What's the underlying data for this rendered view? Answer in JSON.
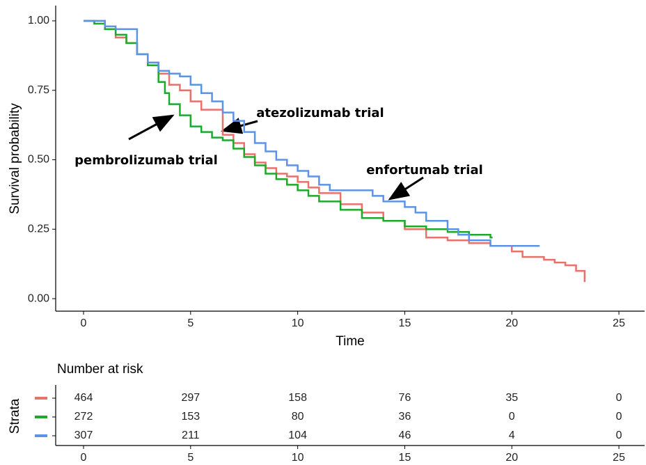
{
  "chart_data": {
    "type": "survival",
    "ylabel": "Survival probability",
    "xlabel": "Time",
    "xlim": [
      -1.3,
      26.2
    ],
    "ylim": [
      -0.045,
      1.055
    ],
    "xticks": [
      0,
      5,
      10,
      15,
      20,
      25
    ],
    "yticks": [
      {
        "value": 0,
        "label": "0.00"
      },
      {
        "value": 0.25,
        "label": "0.25"
      },
      {
        "value": 0.5,
        "label": "0.50"
      },
      {
        "value": 0.75,
        "label": "0.75"
      },
      {
        "value": 1,
        "label": "1.00"
      }
    ],
    "series": [
      {
        "color": "#E8726B",
        "x": [
          0,
          1,
          1.5,
          2,
          2.5,
          3,
          3.5,
          4,
          4.5,
          5,
          5.5,
          6.5,
          7,
          7.5,
          8,
          8.5,
          9,
          9.5,
          10,
          10.5,
          11,
          12,
          13,
          14,
          15,
          16,
          17,
          18,
          19,
          20,
          20.5,
          21.5,
          22,
          22.5,
          23,
          23.4
        ],
        "values": [
          1,
          0.97,
          0.94,
          0.92,
          0.88,
          0.85,
          0.81,
          0.77,
          0.75,
          0.71,
          0.68,
          0.59,
          0.56,
          0.52,
          0.49,
          0.47,
          0.45,
          0.44,
          0.42,
          0.4,
          0.38,
          0.34,
          0.31,
          0.28,
          0.25,
          0.22,
          0.21,
          0.2,
          0.19,
          0.17,
          0.15,
          0.14,
          0.13,
          0.12,
          0.1,
          0.06
        ]
      },
      {
        "color": "#1DAA2C",
        "x": [
          0,
          0.5,
          1,
          1.5,
          2,
          2.5,
          3,
          3.5,
          3.8,
          4,
          4.5,
          5,
          5.5,
          6,
          6.5,
          7,
          7.5,
          8,
          8.5,
          9,
          9.5,
          10,
          10.5,
          11,
          12,
          13,
          14,
          15,
          16,
          17,
          18,
          19,
          19.1
        ],
        "values": [
          1,
          0.99,
          0.97,
          0.95,
          0.92,
          0.88,
          0.84,
          0.78,
          0.74,
          0.7,
          0.66,
          0.62,
          0.6,
          0.58,
          0.57,
          0.54,
          0.51,
          0.48,
          0.45,
          0.43,
          0.41,
          0.39,
          0.37,
          0.35,
          0.32,
          0.29,
          0.28,
          0.26,
          0.25,
          0.24,
          0.23,
          0.22,
          0.22
        ]
      },
      {
        "color": "#5B94E6",
        "x": [
          0,
          1,
          1.5,
          2.5,
          3,
          3.5,
          4,
          4.5,
          5,
          5.5,
          6,
          6.5,
          7,
          7.5,
          8,
          8.5,
          9,
          9.5,
          10,
          10.5,
          11,
          11.5,
          13.5,
          14,
          15,
          15.5,
          16,
          17,
          17.5,
          18,
          19,
          21.3
        ],
        "values": [
          1,
          0.98,
          0.97,
          0.88,
          0.85,
          0.82,
          0.81,
          0.8,
          0.77,
          0.74,
          0.71,
          0.67,
          0.64,
          0.6,
          0.56,
          0.53,
          0.5,
          0.48,
          0.46,
          0.44,
          0.41,
          0.39,
          0.37,
          0.35,
          0.33,
          0.31,
          0.28,
          0.25,
          0.23,
          0.21,
          0.19,
          0.19
        ]
      }
    ],
    "annotations": [
      "atezolizumab trial",
      "pembrolizumab trial",
      "enfortumab trial"
    ],
    "risk_table": {
      "title": "Number at risk",
      "ylabel": "Strata",
      "times": [
        0,
        5,
        10,
        15,
        20,
        25
      ],
      "rows": [
        [
          464,
          297,
          158,
          76,
          35,
          0
        ],
        [
          272,
          153,
          80,
          36,
          0,
          0
        ],
        [
          307,
          211,
          104,
          46,
          4,
          0
        ]
      ]
    }
  }
}
